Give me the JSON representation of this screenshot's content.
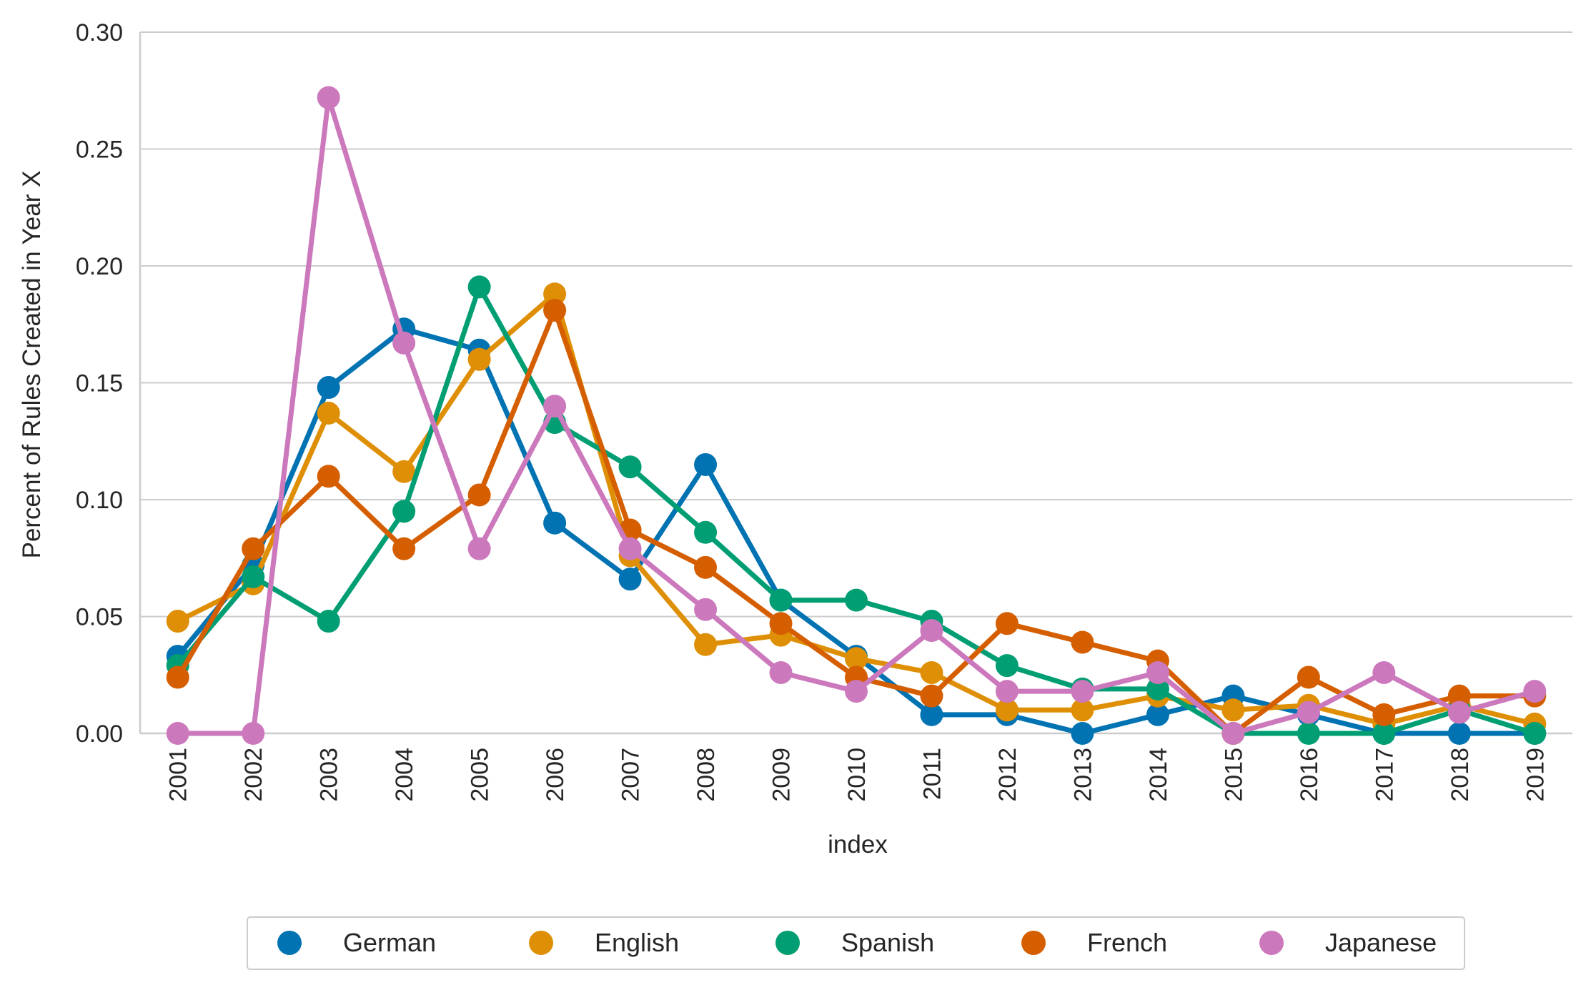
{
  "chart_data": {
    "type": "line",
    "title": "",
    "xlabel": "index",
    "ylabel": "Percent of Rules Created in Year X",
    "ylim": [
      0,
      0.3
    ],
    "yticks": [
      "0.00",
      "0.05",
      "0.10",
      "0.15",
      "0.20",
      "0.25",
      "0.30"
    ],
    "grid": "horizontal",
    "legend_position": "bottom-center",
    "categories": [
      "2001",
      "2002",
      "2003",
      "2004",
      "2005",
      "2006",
      "2007",
      "2008",
      "2009",
      "2010",
      "2011",
      "2012",
      "2013",
      "2014",
      "2015",
      "2016",
      "2017",
      "2018",
      "2019"
    ],
    "series": [
      {
        "name": "German",
        "color": "#0173b2",
        "values": [
          0.033,
          0.072,
          0.148,
          0.173,
          0.164,
          0.09,
          0.066,
          0.115,
          0.057,
          0.033,
          0.008,
          0.008,
          0.0,
          0.008,
          0.016,
          0.008,
          0.0,
          0.0,
          0.0
        ]
      },
      {
        "name": "English",
        "color": "#de8f05",
        "values": [
          0.048,
          0.064,
          0.137,
          0.112,
          0.16,
          0.188,
          0.076,
          0.038,
          0.042,
          0.032,
          0.026,
          0.01,
          0.01,
          0.016,
          0.01,
          0.012,
          0.004,
          0.012,
          0.004
        ]
      },
      {
        "name": "Spanish",
        "color": "#029e73",
        "values": [
          0.029,
          0.067,
          0.048,
          0.095,
          0.191,
          0.133,
          0.114,
          0.086,
          0.057,
          0.057,
          0.048,
          0.029,
          0.019,
          0.019,
          0.0,
          0.0,
          0.0,
          0.01,
          0.0
        ]
      },
      {
        "name": "French",
        "color": "#d55e00",
        "values": [
          0.024,
          0.079,
          0.11,
          0.079,
          0.102,
          0.181,
          0.087,
          0.071,
          0.047,
          0.024,
          0.016,
          0.047,
          0.039,
          0.031,
          0.0,
          0.024,
          0.008,
          0.016,
          0.016
        ]
      },
      {
        "name": "Japanese",
        "color": "#cc78bc",
        "values": [
          0.0,
          0.0,
          0.272,
          0.167,
          0.079,
          0.14,
          0.079,
          0.053,
          0.026,
          0.018,
          0.044,
          0.018,
          0.018,
          0.026,
          0.0,
          0.009,
          0.026,
          0.009,
          0.018
        ]
      }
    ]
  }
}
